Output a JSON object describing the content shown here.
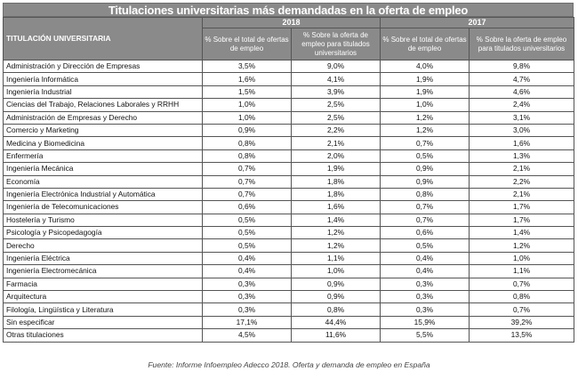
{
  "title": "Titulaciones universitarias más demandadas en la oferta de empleo",
  "header": {
    "col_name": "TITULACIÓN UNIVERSITARIA",
    "year_a": "2018",
    "year_b": "2017",
    "sub_total": "% Sobre el total de ofertas de empleo",
    "sub_univ": "% Sobre la oferta de empleo para titulados universitarios",
    "sub_total_b": "% Sobre el total de ofertas de empleo",
    "sub_univ_b": "% Sobre la oferta de empleo para titulados universitarios"
  },
  "rows": [
    {
      "name": "Administración y Dirección de Empresas",
      "a": "3,5%",
      "b": "9,0%",
      "c": "4,0%",
      "d": "9,8%"
    },
    {
      "name": "Ingeniería Informática",
      "a": "1,6%",
      "b": "4,1%",
      "c": "1,9%",
      "d": "4,7%"
    },
    {
      "name": "Ingeniería Industrial",
      "a": "1,5%",
      "b": "3,9%",
      "c": "1,9%",
      "d": "4,6%"
    },
    {
      "name": "Ciencias del Trabajo, Relaciones Laborales y RRHH",
      "a": "1,0%",
      "b": "2,5%",
      "c": "1,0%",
      "d": "2,4%"
    },
    {
      "name": "Administración de Empresas y Derecho",
      "a": "1,0%",
      "b": "2,5%",
      "c": "1,2%",
      "d": "3,1%"
    },
    {
      "name": "Comercio y Marketing",
      "a": "0,9%",
      "b": "2,2%",
      "c": "1,2%",
      "d": "3,0%"
    },
    {
      "name": "Medicina y Biomedicina",
      "a": "0,8%",
      "b": "2,1%",
      "c": "0,7%",
      "d": "1,6%"
    },
    {
      "name": "Enfermería",
      "a": "0,8%",
      "b": "2,0%",
      "c": "0,5%",
      "d": "1,3%"
    },
    {
      "name": "Ingeniería Mecánica",
      "a": "0,7%",
      "b": "1,9%",
      "c": "0,9%",
      "d": "2,1%"
    },
    {
      "name": "Economía",
      "a": "0,7%",
      "b": "1,8%",
      "c": "0,9%",
      "d": "2,2%"
    },
    {
      "name": "Ingeniería Electrónica Industrial y Automática",
      "a": "0,7%",
      "b": "1,8%",
      "c": "0,8%",
      "d": "2,1%"
    },
    {
      "name": "Ingeniería de Telecomunicaciones",
      "a": "0,6%",
      "b": "1,6%",
      "c": "0,7%",
      "d": "1,7%"
    },
    {
      "name": "Hostelería y Turismo",
      "a": "0,5%",
      "b": "1,4%",
      "c": "0,7%",
      "d": "1,7%"
    },
    {
      "name": "Psicología y Psicopedagogía",
      "a": "0,5%",
      "b": "1,2%",
      "c": "0,6%",
      "d": "1,4%"
    },
    {
      "name": "Derecho",
      "a": "0,5%",
      "b": "1,2%",
      "c": "0,5%",
      "d": "1,2%"
    },
    {
      "name": "Ingeniería Eléctrica",
      "a": "0,4%",
      "b": "1,1%",
      "c": "0,4%",
      "d": "1,0%"
    },
    {
      "name": "Ingeniería Electromecánica",
      "a": "0,4%",
      "b": "1,0%",
      "c": "0,4%",
      "d": "1,1%"
    },
    {
      "name": "Farmacia",
      "a": "0,3%",
      "b": "0,9%",
      "c": "0,3%",
      "d": "0,7%"
    },
    {
      "name": "Arquitectura",
      "a": "0,3%",
      "b": "0,9%",
      "c": "0,3%",
      "d": "0,8%"
    },
    {
      "name": "Filología, Lingüística y Literatura",
      "a": "0,3%",
      "b": "0,8%",
      "c": "0,3%",
      "d": "0,7%"
    },
    {
      "name": "Sin especificar",
      "a": "17,1%",
      "b": "44,4%",
      "c": "15,9%",
      "d": "39,2%"
    },
    {
      "name": "Otras titulaciones",
      "a": "4,5%",
      "b": "11,6%",
      "c": "5,5%",
      "d": "13,5%"
    }
  ],
  "caption": "Fuente: Informe Infoempleo Adecco 2018. Oferta y demanda de empleo en España"
}
